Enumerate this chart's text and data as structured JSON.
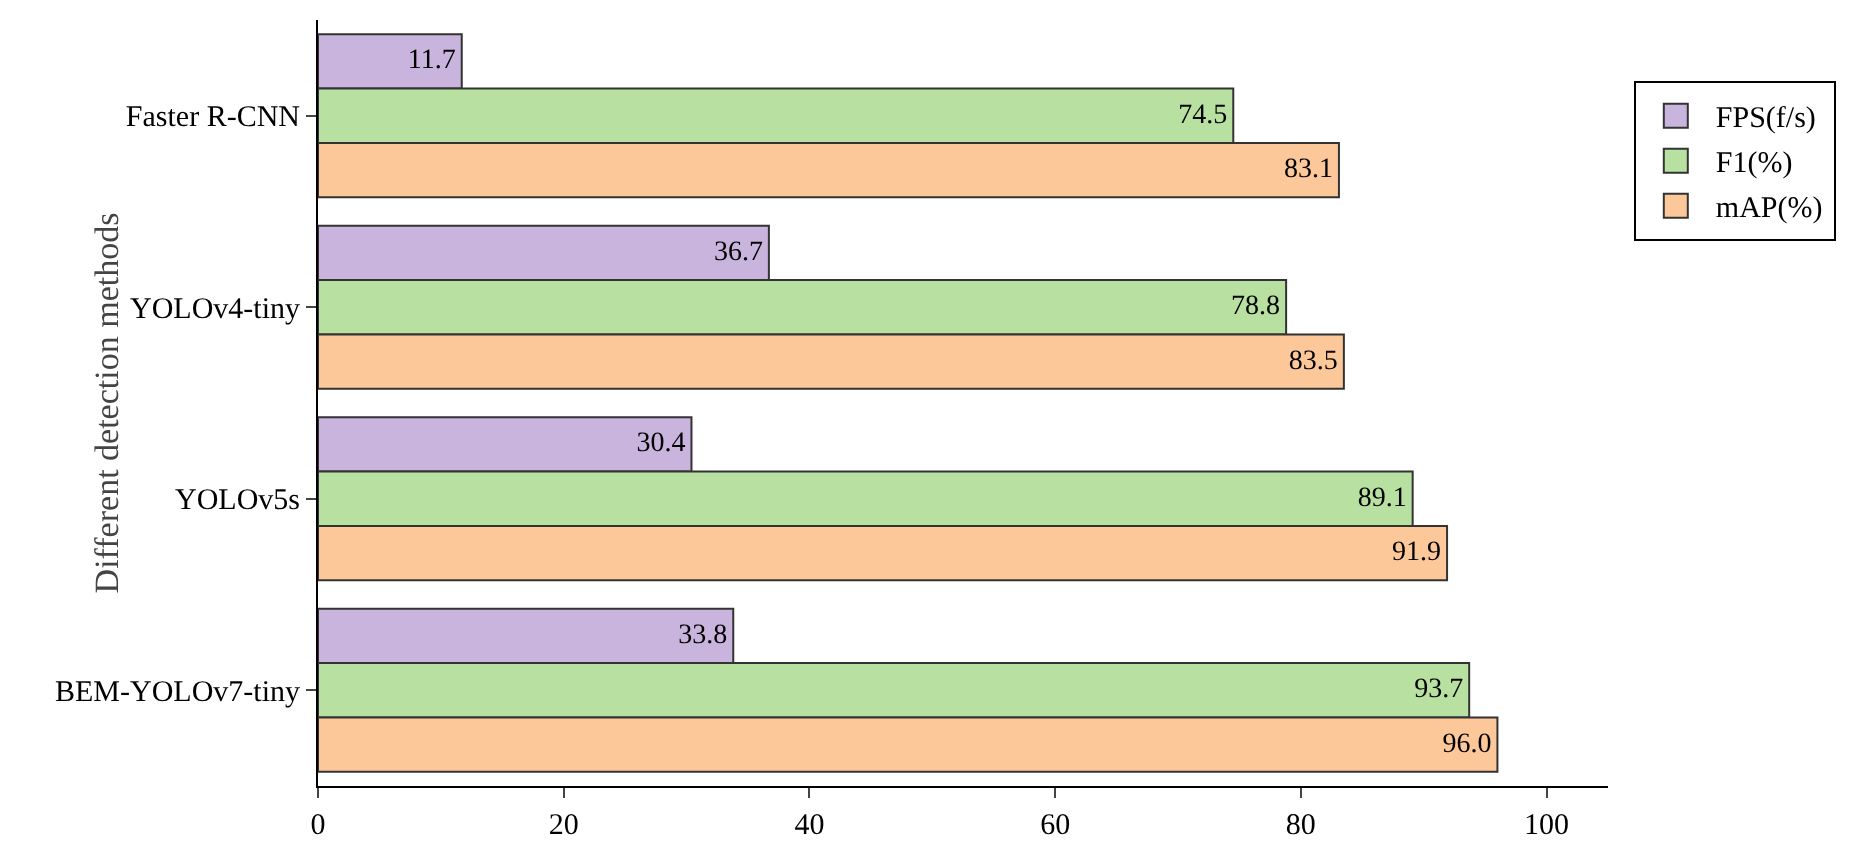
{
  "chart_data": {
    "type": "bar",
    "orientation": "horizontal",
    "ylabel": "Different detection methods",
    "categories": [
      "Faster R-CNN",
      "YOLOv4-tiny",
      "YOLOv5s",
      "BEM-YOLOv7-tiny"
    ],
    "series": [
      {
        "name": "FPS(f/s)",
        "color": "#c8b4dc",
        "values": [
          11.7,
          36.7,
          30.4,
          33.8
        ],
        "value_labels": [
          "11.7",
          "36.7",
          "30.4",
          "33.8"
        ]
      },
      {
        "name": "F1(%)",
        "color": "#b8e0a0",
        "values": [
          74.5,
          78.8,
          89.1,
          93.7
        ],
        "value_labels": [
          "74.5",
          "78.8",
          "89.1",
          "93.7"
        ]
      },
      {
        "name": "mAP(%)",
        "color": "#fcc89a",
        "values": [
          83.1,
          83.5,
          91.9,
          96.0
        ],
        "value_labels": [
          "83.1",
          "83.5",
          "91.9",
          "96.0"
        ]
      }
    ],
    "xlim": [
      0,
      105
    ],
    "xticks": [
      0,
      20,
      40,
      60,
      80,
      100
    ],
    "grid": false,
    "legend": "top right"
  }
}
